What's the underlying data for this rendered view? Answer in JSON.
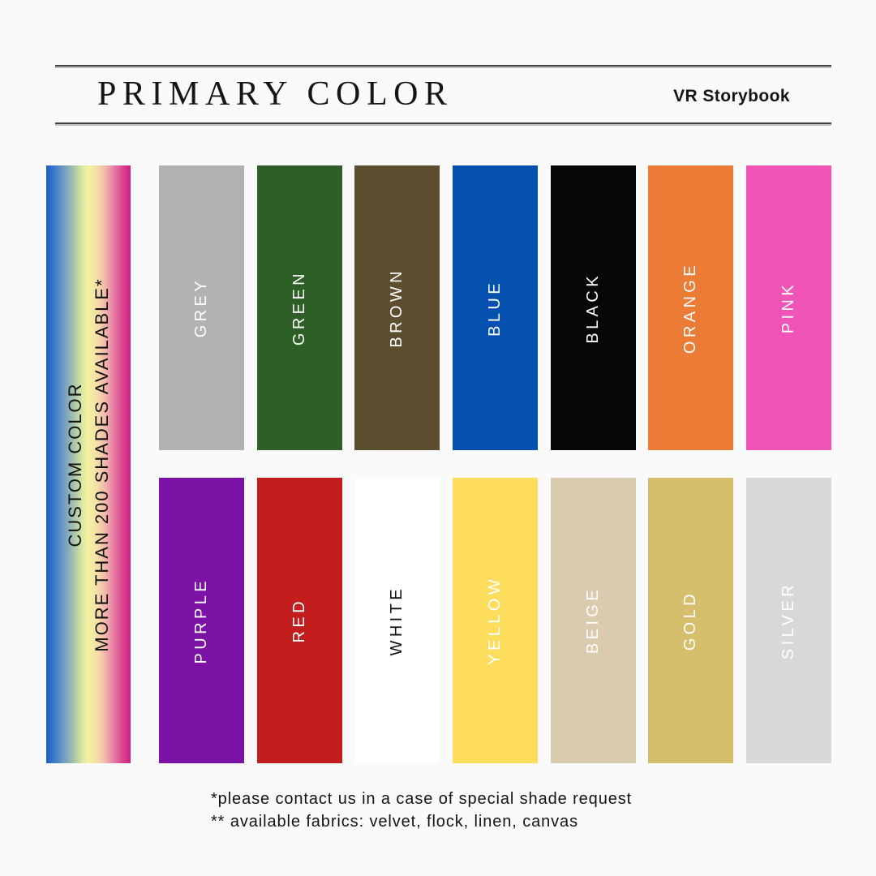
{
  "page": {
    "background": "#fafafa"
  },
  "header": {
    "title": "PRIMARY COLOR",
    "brand": "VR Storybook"
  },
  "custom_bar": {
    "line1": "CUSTOM COLOR",
    "line2": "MORE THAN 200 SHADES AVAILABLE*",
    "text_color": "#121212",
    "gradient_css": "linear-gradient(90deg, #1a5fc8 0%, #4981c8 12%, #7ea6bd 24%, #aec7aa 34%, #dde8a2 43%, #f4f2a1 50%, #f4dda7 61%, #f0b1ab 71%, #e87da4 80%, #dc4492 90%, #ca2181 100%)"
  },
  "swatches": {
    "row1": [
      {
        "label": "GREY",
        "color": "#b3b1b1",
        "label_color": "#ffffff"
      },
      {
        "label": "GREEN",
        "color": "#2e5f26",
        "label_color": "#ffffff"
      },
      {
        "label": "BROWN",
        "color": "#5d4e30",
        "label_color": "#ffffff"
      },
      {
        "label": "BLUE",
        "color": "#0450ae",
        "label_color": "#ffffff"
      },
      {
        "label": "BLACK",
        "color": "#070506",
        "label_color": "#ffffff"
      },
      {
        "label": "ORANGE",
        "color": "#eb7b35",
        "label_color": "#ffffff"
      },
      {
        "label": "PINK",
        "color": "#ef54b6",
        "label_color": "#ffffff"
      }
    ],
    "row2": [
      {
        "label": "PURPLE",
        "color": "#7d12a6",
        "label_color": "#ffffff"
      },
      {
        "label": "RED",
        "color": "#c41d1d",
        "label_color": "#ffffff"
      },
      {
        "label": "WHITE",
        "color": "#ffffff",
        "label_color": "#111111"
      },
      {
        "label": "YELLOW",
        "color": "#fedd5c",
        "label_color": "#ffffff"
      },
      {
        "label": "BEIGE",
        "color": "#dacbaf",
        "label_color": "#ffffff"
      },
      {
        "label": "GOLD",
        "color": "#d5bf6c",
        "label_color": "#ffffff"
      },
      {
        "label": "SILVER",
        "color": "#d9d8d8",
        "label_color": "#ffffff"
      }
    ]
  },
  "footnotes": {
    "line1": "*please contact us in a case of special shade request",
    "line2": "** available fabrics: velvet, flock, linen, canvas"
  }
}
